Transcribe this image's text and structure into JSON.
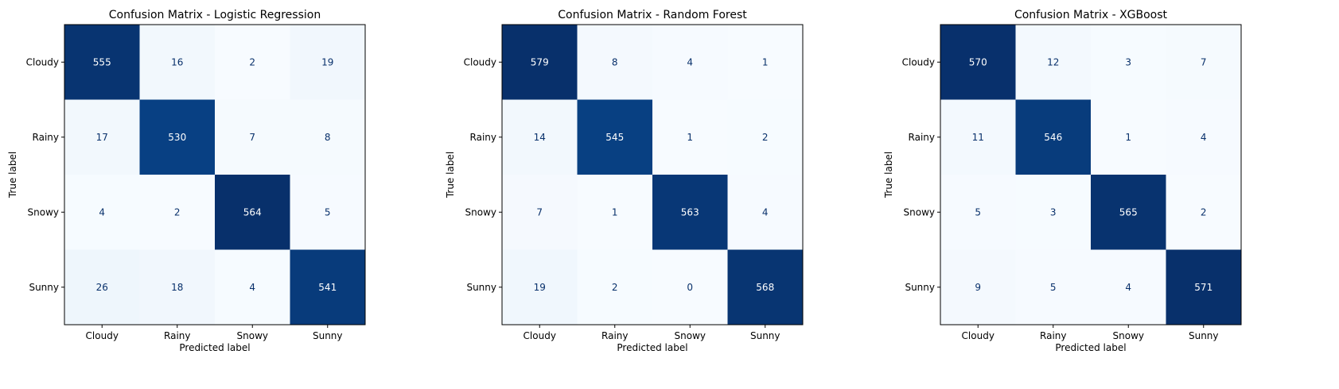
{
  "chart_data": [
    {
      "type": "heatmap",
      "title": "Confusion Matrix - Logistic Regression",
      "xlabel": "Predicted label",
      "ylabel": "True label",
      "x_categories": [
        "Cloudy",
        "Rainy",
        "Snowy",
        "Sunny"
      ],
      "y_categories": [
        "Cloudy",
        "Rainy",
        "Snowy",
        "Sunny"
      ],
      "matrix": [
        [
          555,
          16,
          2,
          19
        ],
        [
          17,
          530,
          7,
          8
        ],
        [
          4,
          2,
          564,
          5
        ],
        [
          26,
          18,
          4,
          541
        ]
      ],
      "colormap": "Blues"
    },
    {
      "type": "heatmap",
      "title": "Confusion Matrix - Random Forest",
      "xlabel": "Predicted label",
      "ylabel": "True label",
      "x_categories": [
        "Cloudy",
        "Rainy",
        "Snowy",
        "Sunny"
      ],
      "y_categories": [
        "Cloudy",
        "Rainy",
        "Snowy",
        "Sunny"
      ],
      "matrix": [
        [
          579,
          8,
          4,
          1
        ],
        [
          14,
          545,
          1,
          2
        ],
        [
          7,
          1,
          563,
          4
        ],
        [
          19,
          2,
          0,
          568
        ]
      ],
      "colormap": "Blues"
    },
    {
      "type": "heatmap",
      "title": "Confusion Matrix - XGBoost",
      "xlabel": "Predicted label",
      "ylabel": "True label",
      "x_categories": [
        "Cloudy",
        "Rainy",
        "Snowy",
        "Sunny"
      ],
      "y_categories": [
        "Cloudy",
        "Rainy",
        "Snowy",
        "Sunny"
      ],
      "matrix": [
        [
          570,
          12,
          3,
          7
        ],
        [
          11,
          546,
          1,
          4
        ],
        [
          5,
          3,
          565,
          2
        ],
        [
          9,
          5,
          4,
          571
        ]
      ],
      "colormap": "Blues"
    }
  ],
  "colors": {
    "low": "#f7fbff",
    "high": "#08306b",
    "text_dark": "#08306b",
    "text_light": "#ffffff"
  }
}
